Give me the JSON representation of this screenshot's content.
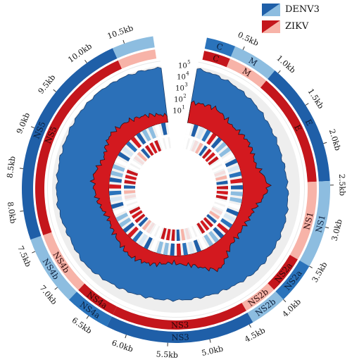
{
  "legend": [
    {
      "label": "DENV3",
      "dark": "#1f5fa8",
      "light": "#8dbde0"
    },
    {
      "label": "ZIKV",
      "dark": "#c4161c",
      "light": "#f7b3a8"
    }
  ],
  "colors": {
    "denv_dark": "#1f5fa8",
    "denv_mid": "#2a73bb",
    "denv_light": "#8dbde0",
    "zikv_dark": "#c4161c",
    "zikv_light": "#f7b3a8",
    "fill_blue": "#2b70b8",
    "fill_red": "#d3191f",
    "gray": "#eeeeee"
  },
  "chart_data": {
    "type": "circular-genome",
    "start_angle_deg": 10,
    "end_angle_deg": 353,
    "genome_length_kb": 10.9,
    "position_ticks": [
      "0.5kb",
      "1.0kb",
      "1.5kb",
      "2.0kb",
      "2.5kb",
      "3.0kb",
      "3.5kb",
      "4.0kb",
      "4.5kb",
      "5.0kb",
      "5.5kb",
      "6.0kb",
      "6.5kb",
      "7.0kb",
      "7.5kb",
      "8.0kb",
      "8.5kb",
      "9.0kb",
      "9.5kb",
      "10.0kb",
      "10.5kb"
    ],
    "coverage_ticks": [
      "10",
      "10",
      "10",
      "10",
      "10"
    ],
    "coverage_tick_exponents": [
      "1",
      "2",
      "3",
      "4",
      "5"
    ],
    "denv3_genes": [
      {
        "name": "C",
        "start": 0.05,
        "end": 0.4,
        "shade": "mid"
      },
      {
        "name": "M",
        "start": 0.4,
        "end": 0.95,
        "shade": "light"
      },
      {
        "name": "E",
        "start": 0.95,
        "end": 2.45,
        "shade": "dark"
      },
      {
        "name": "NS1",
        "start": 2.45,
        "end": 3.5,
        "shade": "light"
      },
      {
        "name": "NS2a",
        "start": 3.5,
        "end": 4.0,
        "shade": "mid"
      },
      {
        "name": "NS2b",
        "start": 4.0,
        "end": 4.45,
        "shade": "light"
      },
      {
        "name": "NS3",
        "start": 4.45,
        "end": 6.25,
        "shade": "dark"
      },
      {
        "name": "NS4a",
        "start": 6.25,
        "end": 6.8,
        "shade": "mid"
      },
      {
        "name": "NS4b",
        "start": 6.8,
        "end": 7.65,
        "shade": "light"
      },
      {
        "name": "NS5",
        "start": 7.65,
        "end": 10.35,
        "shade": "dark"
      },
      {
        "name": "",
        "start": 10.35,
        "end": 10.85,
        "shade": "light"
      }
    ],
    "zikv_genes": [
      {
        "name": "C",
        "start": 0.05,
        "end": 0.4,
        "shade": "dark"
      },
      {
        "name": "M",
        "start": 0.4,
        "end": 0.95,
        "shade": "light"
      },
      {
        "name": "E",
        "start": 0.95,
        "end": 2.45,
        "shade": "dark"
      },
      {
        "name": "NS1",
        "start": 2.45,
        "end": 3.5,
        "shade": "light"
      },
      {
        "name": "NS2a",
        "start": 3.5,
        "end": 4.0,
        "shade": "dark"
      },
      {
        "name": "NS2b",
        "start": 4.0,
        "end": 4.45,
        "shade": "light"
      },
      {
        "name": "NS3",
        "start": 4.45,
        "end": 6.25,
        "shade": "dark"
      },
      {
        "name": "NS4a",
        "start": 6.25,
        "end": 6.8,
        "shade": "dark"
      },
      {
        "name": "NS4b",
        "start": 6.8,
        "end": 7.65,
        "shade": "light"
      },
      {
        "name": "NS5",
        "start": 7.65,
        "end": 10.35,
        "shade": "dark"
      },
      {
        "name": "",
        "start": 10.35,
        "end": 10.85,
        "shade": "light"
      }
    ],
    "coverage_log10": {
      "positions_kb": [
        0.0,
        0.5,
        1.0,
        1.5,
        2.0,
        2.5,
        3.0,
        3.5,
        4.0,
        4.5,
        5.0,
        5.5,
        6.0,
        6.5,
        7.0,
        7.5,
        8.0,
        8.5,
        9.0,
        9.5,
        10.0,
        10.5,
        10.9
      ],
      "denv3": [
        4.8,
        4.6,
        4.3,
        4.0,
        3.8,
        3.9,
        4.1,
        4.2,
        4.2,
        4.0,
        3.9,
        3.9,
        4.0,
        4.2,
        4.5,
        4.4,
        4.6,
        4.6,
        4.7,
        4.9,
        5.0,
        4.9,
        4.8
      ],
      "zikv": [
        1.8,
        2.0,
        1.5,
        1.7,
        1.4,
        2.3,
        1.2,
        0.9,
        1.0,
        2.2,
        1.0,
        0.6,
        1.1,
        1.3,
        0.9,
        0.6,
        1.1,
        1.5,
        1.0,
        1.6,
        1.4,
        1.0,
        0.6
      ]
    }
  }
}
